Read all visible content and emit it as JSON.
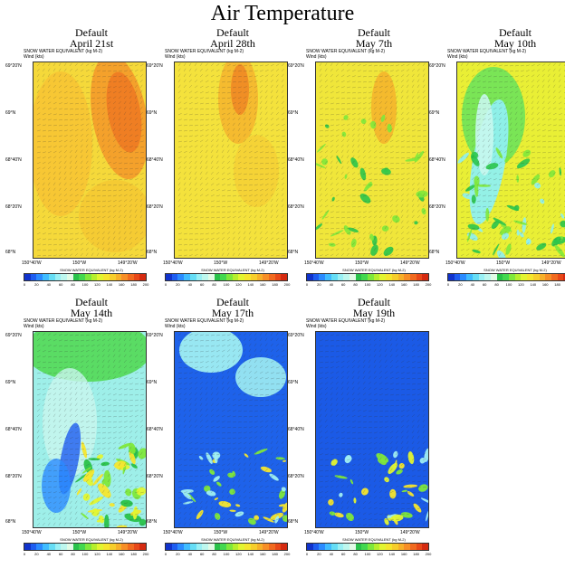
{
  "title": "Air Temperature",
  "panel_common": {
    "header": "Default",
    "variable_line": "SNOW WATER EQUIVALENT    (kg M-2)",
    "wind_line": "Wind    (kts)",
    "bar_title": "SNOW WATER EQUIVALENT  (kg M-2)",
    "lat_labels": [
      "69°20'N",
      "69°N",
      "68°40'N",
      "68°20'N",
      "68°N"
    ],
    "lon_labels": [
      "150°40'W",
      "150°W",
      "149°20'W"
    ]
  },
  "panels": [
    {
      "date": "April 21st",
      "scene": "april21",
      "show_axes": true
    },
    {
      "date": "April 28th",
      "scene": "april28",
      "show_axes": true
    },
    {
      "date": "May 7th",
      "scene": "may7",
      "show_axes": true
    },
    {
      "date": "May 10th",
      "scene": "may10",
      "show_axes": true
    },
    {
      "date": "May 14th",
      "scene": "may14",
      "show_axes": true
    },
    {
      "date": "May 17th",
      "scene": "may17",
      "show_axes": true
    },
    {
      "date": "May 19th",
      "scene": "may19",
      "show_axes": true
    }
  ],
  "colorbar": {
    "ticks": [
      "0",
      "20",
      "40",
      "60",
      "80",
      "100",
      "120",
      "140",
      "160",
      "180",
      "200"
    ],
    "colors": [
      "#1133cc",
      "#1e5df0",
      "#2a8bff",
      "#3fbcff",
      "#66ddf5",
      "#99f0f5",
      "#bdf7ee",
      "#e1fbe6",
      "#29c24a",
      "#43d84f",
      "#7fe83b",
      "#b6ef2c",
      "#e3f530",
      "#f5e62d",
      "#f7ce2b",
      "#f7b029",
      "#f78e26",
      "#f16a1f",
      "#e84818",
      "#d52a10"
    ]
  }
}
